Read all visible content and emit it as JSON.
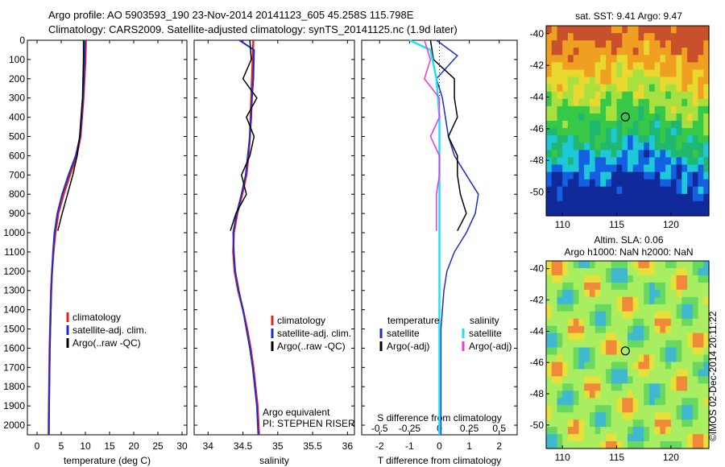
{
  "title_line1": "Argo profile: AO 5903593_190 23-Nov-2014 20141123_605 45.258S 115.798E",
  "title_line2": "Climatology: CARS2009. Satellite-adjusted climatology: synTS_20141125.nc (1.9d later)",
  "stamp": "©IMOS 02-Dec-2014 20:11:22",
  "colors": {
    "climatology": "#e8201c",
    "satellite": "#1f2ccc",
    "argo": "#000000",
    "sat_salinity": "#22e0ee",
    "argo_salinity": "#ee33dd"
  },
  "chart_data": [
    {
      "type": "line",
      "xlabel": "temperature (deg C)",
      "ylim": [
        2050,
        0
      ],
      "xlim": [
        -2,
        31
      ],
      "xticks": [
        0,
        5,
        10,
        15,
        20,
        25,
        30
      ],
      "yticks": [
        0,
        100,
        200,
        300,
        400,
        500,
        600,
        700,
        800,
        900,
        1000,
        1100,
        1200,
        1300,
        1400,
        1500,
        1600,
        1700,
        1800,
        1900,
        2000
      ],
      "legend": [
        "climatology",
        "satellite-adj. clim.",
        "Argo(..raw -QC)"
      ],
      "series": [
        {
          "name": "climatology",
          "x": [
            10.1,
            10.0,
            9.8,
            9.6,
            9.3,
            9.0,
            8.2,
            6.8,
            5.5,
            4.4,
            3.8,
            3.4,
            3.1,
            2.9,
            2.8,
            2.7,
            2.6,
            2.55,
            2.5,
            2.45,
            2.4
          ],
          "y": [
            0,
            100,
            200,
            300,
            400,
            500,
            600,
            700,
            800,
            900,
            1000,
            1100,
            1200,
            1300,
            1400,
            1500,
            1600,
            1700,
            1800,
            1900,
            2050
          ]
        },
        {
          "name": "satellite-adj. clim.",
          "x": [
            9.9,
            9.8,
            9.7,
            9.5,
            9.2,
            8.9,
            8.0,
            6.5,
            5.2,
            4.2,
            3.6,
            3.3,
            3.1,
            2.95,
            2.85,
            2.75,
            2.65,
            2.6,
            2.55,
            2.5,
            2.45
          ],
          "y": [
            0,
            100,
            200,
            300,
            400,
            500,
            600,
            700,
            800,
            900,
            1000,
            1100,
            1200,
            1300,
            1400,
            1500,
            1600,
            1700,
            1800,
            1900,
            2050
          ]
        },
        {
          "name": "Argo(..raw -QC)",
          "x": [
            9.6,
            9.6,
            9.5,
            9.4,
            9.1,
            8.8,
            8.3,
            7.4,
            6.3,
            5.2,
            4.3
          ],
          "y": [
            0,
            100,
            200,
            300,
            400,
            500,
            600,
            700,
            800,
            900,
            990
          ]
        }
      ]
    },
    {
      "type": "line",
      "xlabel": "salinity",
      "ylim": [
        2050,
        0
      ],
      "xlim": [
        33.8,
        36.1
      ],
      "xticks": [
        34,
        34.5,
        35,
        35.5,
        36
      ],
      "legend": [
        "climatology",
        "satellite-adj. clim.",
        "Argo(..raw -QC)"
      ],
      "annotations": [
        "Argo equivalent",
        "PI: STEPHEN RISER"
      ],
      "series": [
        {
          "name": "climatology",
          "x": [
            34.65,
            34.64,
            34.63,
            34.62,
            34.61,
            34.6,
            34.58,
            34.55,
            34.49,
            34.42,
            34.37,
            34.36,
            34.38,
            34.43,
            34.5,
            34.56,
            34.61,
            34.65,
            34.68,
            34.71,
            34.73
          ],
          "y": [
            0,
            100,
            200,
            300,
            400,
            500,
            600,
            700,
            800,
            900,
            1000,
            1100,
            1200,
            1300,
            1400,
            1500,
            1600,
            1700,
            1800,
            1900,
            2050
          ]
        },
        {
          "name": "satellite-adj. clim.",
          "x": [
            34.45,
            34.66,
            34.65,
            34.63,
            34.62,
            34.6,
            34.57,
            34.54,
            34.48,
            34.41,
            34.36,
            34.37,
            34.39,
            34.44,
            34.5,
            34.55,
            34.6,
            34.64,
            34.67,
            34.7,
            34.72
          ],
          "y": [
            0,
            50,
            200,
            300,
            400,
            500,
            600,
            700,
            800,
            900,
            1000,
            1100,
            1200,
            1300,
            1400,
            1500,
            1600,
            1700,
            1800,
            1900,
            2050
          ]
        },
        {
          "name": "Argo(..raw -QC)",
          "x": [
            34.6,
            34.62,
            34.5,
            34.7,
            34.55,
            34.66,
            34.6,
            34.48,
            34.55,
            34.4,
            34.32
          ],
          "y": [
            0,
            100,
            200,
            300,
            400,
            500,
            600,
            700,
            800,
            900,
            990
          ]
        }
      ]
    },
    {
      "type": "line",
      "xlabel": "T difference from climatology",
      "x2label": "S difference from climatology",
      "ylim": [
        2050,
        0
      ],
      "xlim": [
        -2.6,
        2.6
      ],
      "xticks_T": [
        -2,
        -1,
        0,
        1,
        2
      ],
      "xticks_S": [
        -0.5,
        -0.25,
        0,
        0.25,
        0.5
      ],
      "legend_t_title": "temperature",
      "legend_s_title": "salinity",
      "legend_t": [
        "satellite",
        "Argo(-adj)"
      ],
      "legend_s": [
        "satellite",
        "Argo(-adj)"
      ],
      "series": [
        {
          "name": "T satellite",
          "x": [
            -0.1,
            0.6,
            -0.1,
            0.1,
            0.2,
            0.3,
            0.5,
            0.9,
            1.3,
            1.2,
            0.9,
            0.5,
            0.25,
            0.15,
            0.1,
            0.05,
            0.05,
            0.05,
            0.05,
            0.05,
            0.05
          ],
          "y": [
            0,
            80,
            200,
            300,
            400,
            500,
            600,
            700,
            800,
            900,
            1000,
            1100,
            1200,
            1300,
            1400,
            1500,
            1600,
            1700,
            1800,
            1900,
            2050
          ]
        },
        {
          "name": "T Argo(-adj)",
          "x": [
            -0.3,
            -0.2,
            0.5,
            0.5,
            0.6,
            0.3,
            0.6,
            0.6,
            0.7,
            0.9,
            0.6
          ],
          "y": [
            0,
            100,
            200,
            300,
            400,
            500,
            600,
            700,
            800,
            900,
            990
          ]
        },
        {
          "name": "S satellite",
          "x": [
            -1.0,
            -0.3,
            -0.1,
            -0.05,
            0,
            0,
            0,
            0,
            0,
            0,
            0,
            0,
            0,
            0,
            0,
            0,
            0,
            0,
            0,
            0,
            0
          ],
          "y": [
            0,
            50,
            200,
            300,
            400,
            500,
            600,
            700,
            800,
            900,
            1000,
            1100,
            1200,
            1300,
            1400,
            1500,
            1600,
            1700,
            1800,
            1900,
            2050
          ]
        },
        {
          "name": "S Argo(-adj)",
          "x": [
            -0.5,
            -0.3,
            -0.5,
            0.0,
            0.0,
            -0.3,
            0.0,
            0.0,
            -0.1,
            -0.1,
            -0.1
          ],
          "y": [
            0,
            100,
            200,
            300,
            400,
            500,
            600,
            700,
            800,
            900,
            990
          ]
        }
      ]
    },
    {
      "type": "heatmap",
      "title": "sat. SST: 9.41  Argo: 9.47",
      "xticks": [
        110,
        115,
        120
      ],
      "yticks": [
        -40,
        -42,
        -44,
        -46,
        -48,
        -50
      ],
      "xlim": [
        108.5,
        123.5
      ],
      "ylim": [
        -51.5,
        -39.5
      ],
      "marker": {
        "lon": 115.798,
        "lat": -45.258
      }
    },
    {
      "type": "heatmap",
      "title_line1": "Altim. SLA: 0.06",
      "title_line2": "Argo h1000: NaN h2000: NaN",
      "xticks": [
        110,
        115,
        120
      ],
      "yticks": [
        -40,
        -42,
        -44,
        -46,
        -48,
        -50
      ],
      "xlim": [
        108.5,
        123.5
      ],
      "ylim": [
        -51.5,
        -39.5
      ],
      "marker": {
        "lon": 115.798,
        "lat": -45.258
      }
    }
  ]
}
